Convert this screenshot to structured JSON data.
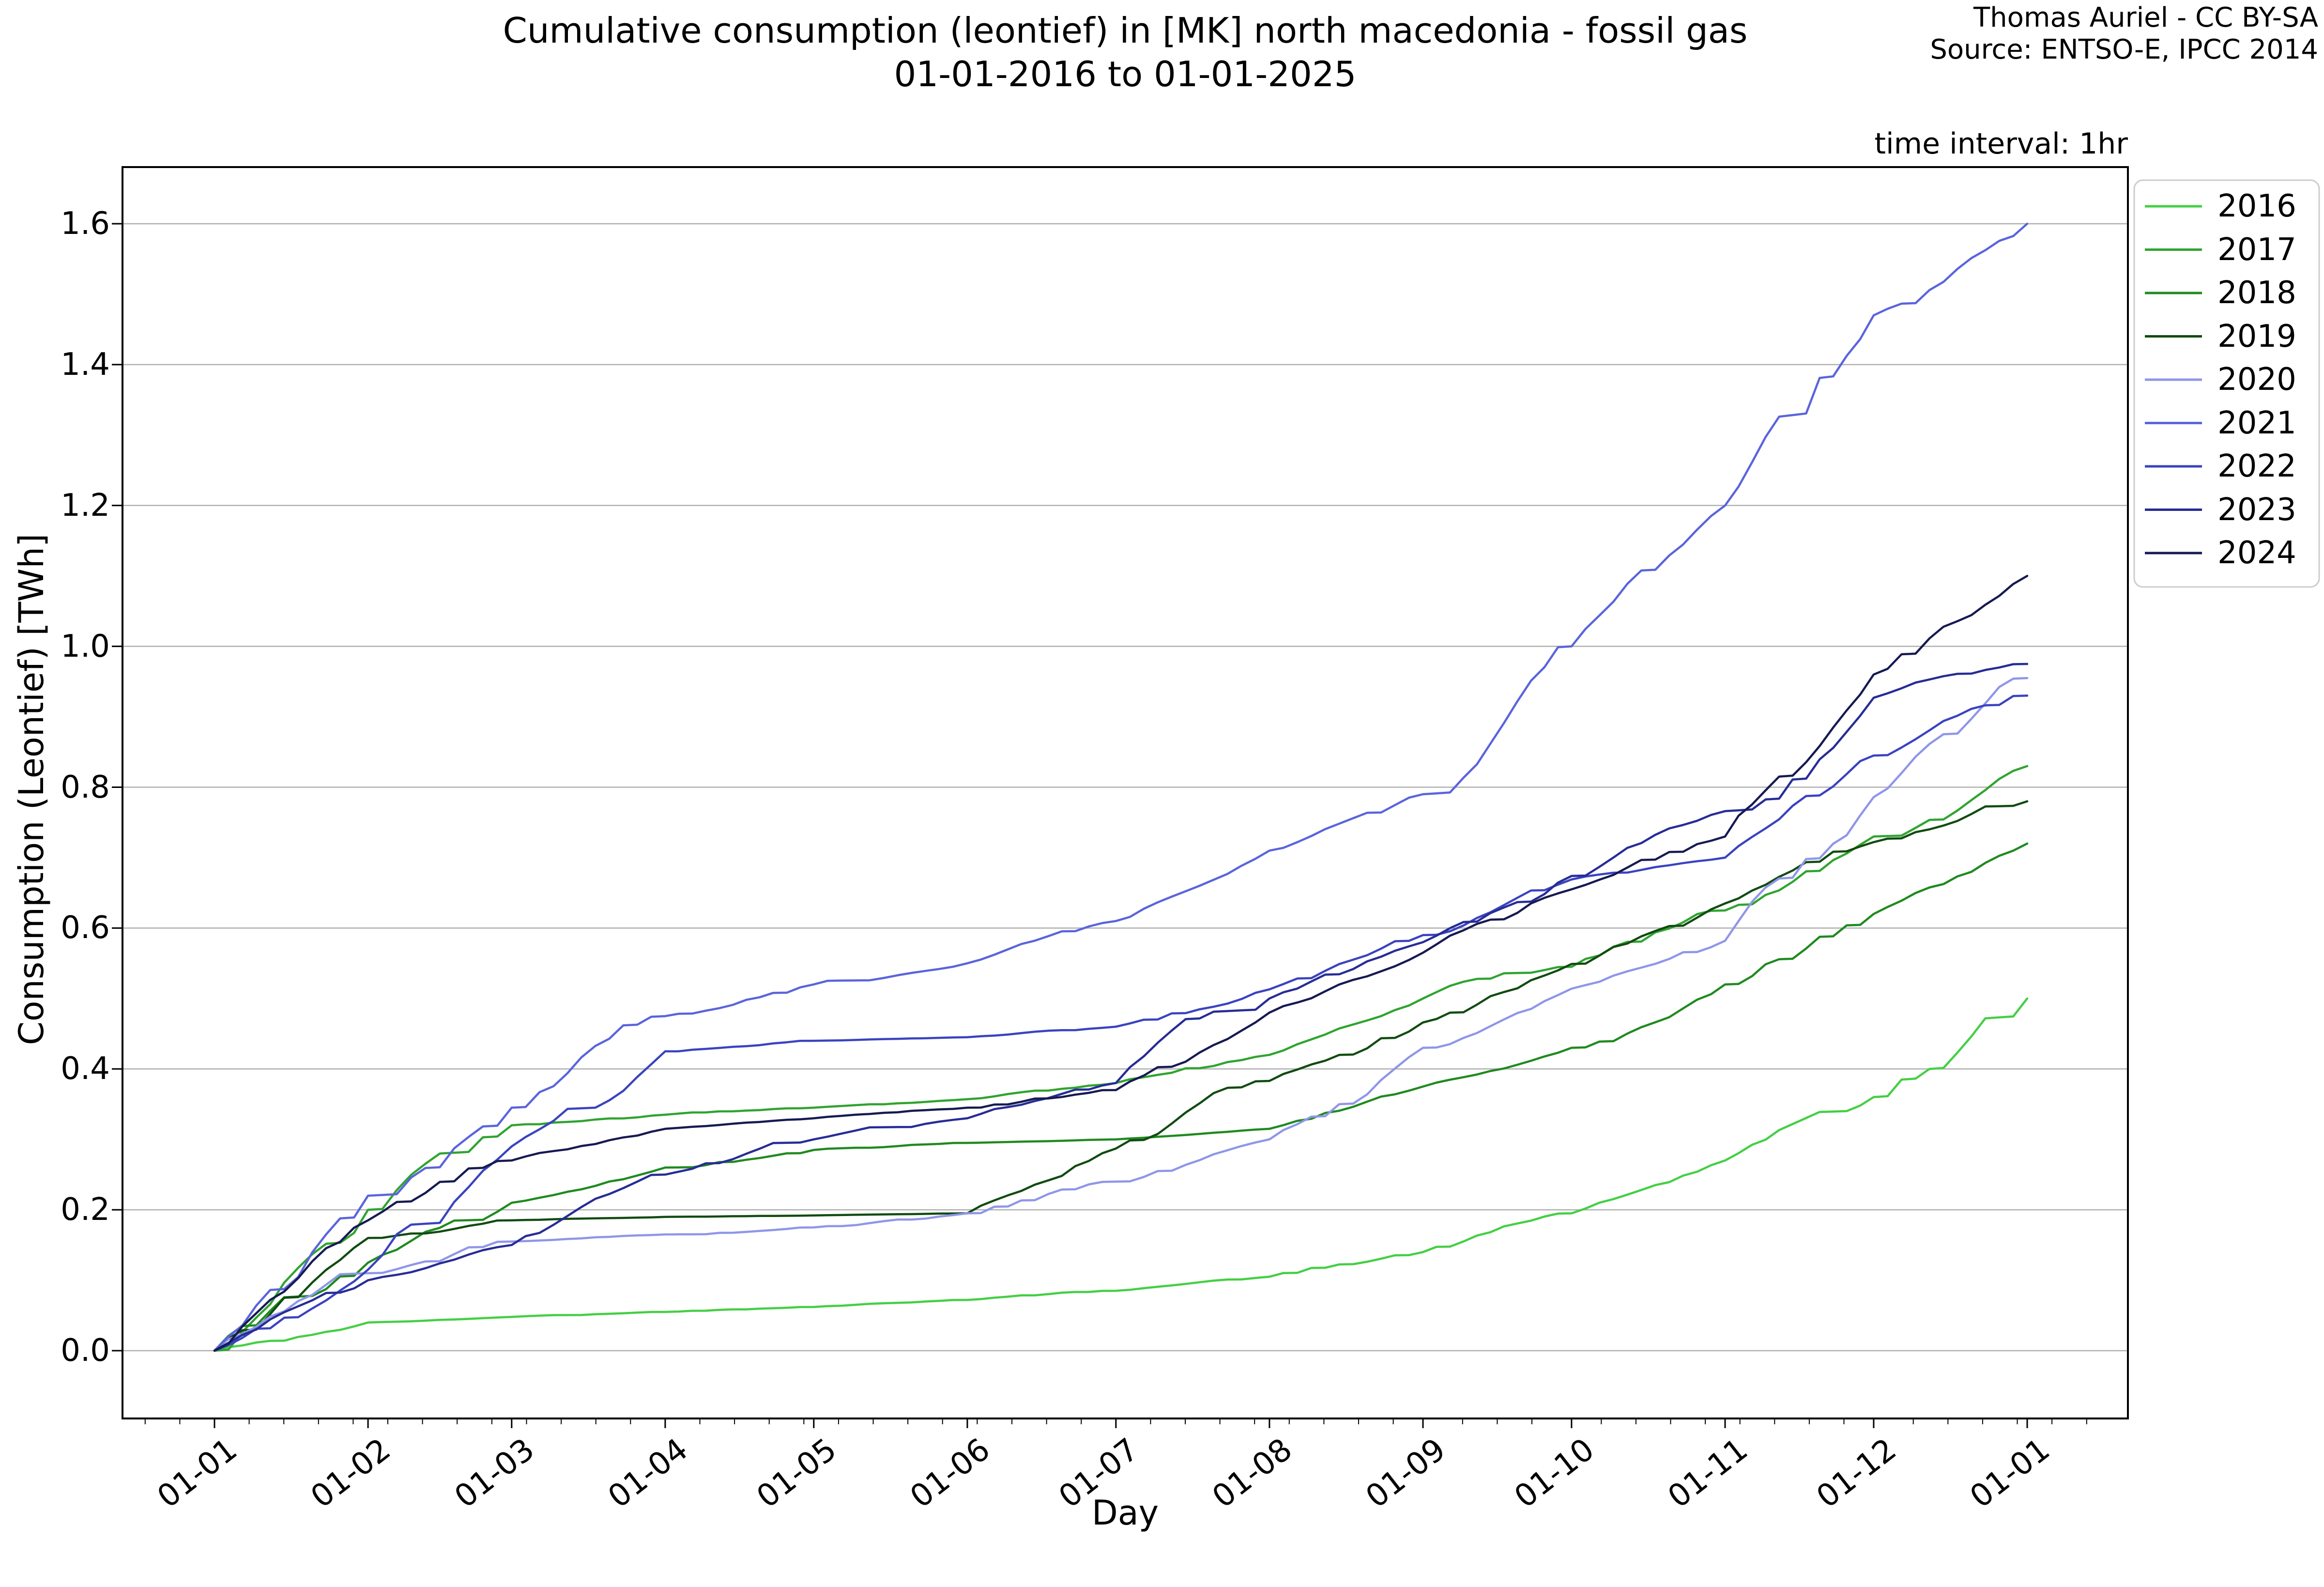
{
  "header": {
    "attribution_line1": "Thomas Auriel - CC BY-SA",
    "attribution_line2": "Source: ENTSO-E, IPCC 2014",
    "time_interval_note": "time interval: 1hr"
  },
  "chart_data": {
    "type": "line",
    "title": "Cumulative consumption (leontief) in [MK] north macedonia - fossil gas",
    "subtitle": "01-01-2016 to 01-01-2025",
    "xlabel": "Day",
    "ylabel": "Consumption (Leontief) [TWh]",
    "x_tick_labels": [
      "01-01",
      "01-02",
      "01-03",
      "01-04",
      "01-05",
      "01-06",
      "01-07",
      "01-08",
      "01-09",
      "01-10",
      "01-11",
      "01-12",
      "01-01"
    ],
    "x_month_day_offsets": [
      0,
      31,
      60,
      91,
      121,
      152,
      182,
      213,
      244,
      274,
      305,
      335,
      366
    ],
    "y_ticks": [
      0.0,
      0.2,
      0.4,
      0.6,
      0.8,
      1.0,
      1.2,
      1.4,
      1.6
    ],
    "y_tick_labels": [
      "0.0",
      "0.2",
      "0.4",
      "0.6",
      "0.8",
      "1.0",
      "1.2",
      "1.4",
      "1.6"
    ],
    "ylim": [
      0.0,
      1.6
    ],
    "grid": "horizontal-only",
    "grid_color": "#b0b0b0",
    "legend_position": "upper-right-outside",
    "series": [
      {
        "name": "2016",
        "color": "#44cf44",
        "monthly_cumulative_twh": [
          0,
          0.04,
          0.048,
          0.055,
          0.062,
          0.072,
          0.085,
          0.105,
          0.14,
          0.195,
          0.27,
          0.36,
          0.5
        ]
      },
      {
        "name": "2017",
        "color": "#2fa42f",
        "monthly_cumulative_twh": [
          0,
          0.2,
          0.32,
          0.335,
          0.345,
          0.357,
          0.38,
          0.42,
          0.5,
          0.545,
          0.625,
          0.73,
          0.83
        ]
      },
      {
        "name": "2018",
        "color": "#1f8a1f",
        "monthly_cumulative_twh": [
          0,
          0.125,
          0.21,
          0.26,
          0.285,
          0.295,
          0.3,
          0.315,
          0.375,
          0.43,
          0.52,
          0.62,
          0.72
        ]
      },
      {
        "name": "2019",
        "color": "#114b11",
        "monthly_cumulative_twh": [
          0,
          0.16,
          0.185,
          0.19,
          0.192,
          0.195,
          0.287,
          0.383,
          0.466,
          0.549,
          0.635,
          0.722,
          0.78
        ]
      },
      {
        "name": "2020",
        "color": "#8f96e8",
        "monthly_cumulative_twh": [
          0,
          0.11,
          0.155,
          0.165,
          0.175,
          0.195,
          0.24,
          0.3,
          0.43,
          0.514,
          0.582,
          0.786,
          0.955
        ]
      },
      {
        "name": "2021",
        "color": "#5a64dc",
        "monthly_cumulative_twh": [
          0,
          0.22,
          0.345,
          0.475,
          0.52,
          0.55,
          0.61,
          0.71,
          0.79,
          1.0,
          1.2,
          1.47,
          1.6
        ]
      },
      {
        "name": "2022",
        "color": "#3a43c0",
        "monthly_cumulative_twh": [
          0,
          0.115,
          0.29,
          0.425,
          0.44,
          0.445,
          0.46,
          0.513,
          0.59,
          0.669,
          0.7,
          0.845,
          0.93
        ]
      },
      {
        "name": "2023",
        "color": "#272c96",
        "monthly_cumulative_twh": [
          0,
          0.1,
          0.15,
          0.25,
          0.3,
          0.33,
          0.38,
          0.5,
          0.58,
          0.674,
          0.766,
          0.927,
          0.975
        ]
      },
      {
        "name": "2024",
        "color": "#161a52",
        "monthly_cumulative_twh": [
          0,
          0.185,
          0.27,
          0.315,
          0.33,
          0.345,
          0.37,
          0.48,
          0.565,
          0.655,
          0.73,
          0.96,
          1.1
        ]
      }
    ]
  }
}
